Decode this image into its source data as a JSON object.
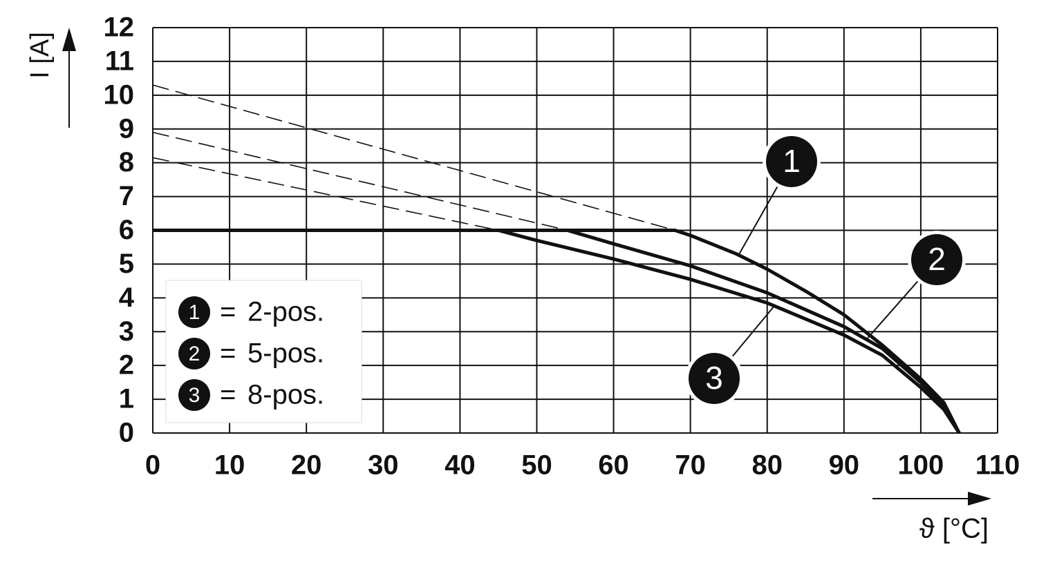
{
  "chart_data": {
    "type": "line",
    "x_label": "ϑ [°C]",
    "y_label": "I [A]",
    "xlim": [
      0,
      110
    ],
    "ylim": [
      0,
      12
    ],
    "xticks": [
      0,
      10,
      20,
      30,
      40,
      50,
      60,
      70,
      80,
      90,
      100,
      110
    ],
    "yticks": [
      0,
      1,
      2,
      3,
      4,
      5,
      6,
      7,
      8,
      9,
      10,
      11,
      12
    ],
    "grid": true,
    "legend_position": "lower left",
    "legend_separator": "=",
    "series": [
      {
        "marker_label": "1",
        "name": "2-pos.",
        "color": "#111111",
        "x": [
          0,
          68,
          70,
          76,
          80,
          85,
          90,
          95,
          100,
          103,
          105
        ],
        "values": [
          6,
          6,
          5.85,
          5.3,
          4.85,
          4.2,
          3.5,
          2.6,
          1.6,
          0.9,
          0
        ],
        "extrapolation": {
          "x": [
            0,
            68
          ],
          "values": [
            10.3,
            6.0
          ]
        }
      },
      {
        "marker_label": "2",
        "name": "5-pos.",
        "color": "#111111",
        "x": [
          0,
          54,
          60,
          70,
          80,
          90,
          95,
          100,
          103,
          105
        ],
        "values": [
          6,
          6,
          5.6,
          4.95,
          4.15,
          3.15,
          2.5,
          1.5,
          0.8,
          0
        ],
        "extrapolation": {
          "x": [
            0,
            54
          ],
          "values": [
            8.9,
            6.0
          ]
        }
      },
      {
        "marker_label": "3",
        "name": "8-pos.",
        "color": "#111111",
        "x": [
          0,
          45,
          50,
          60,
          70,
          80,
          90,
          95,
          100,
          103,
          105
        ],
        "values": [
          6,
          6,
          5.7,
          5.15,
          4.55,
          3.85,
          2.9,
          2.3,
          1.35,
          0.7,
          0
        ],
        "extrapolation": {
          "x": [
            0,
            45
          ],
          "values": [
            8.15,
            6.0
          ]
        }
      }
    ]
  }
}
